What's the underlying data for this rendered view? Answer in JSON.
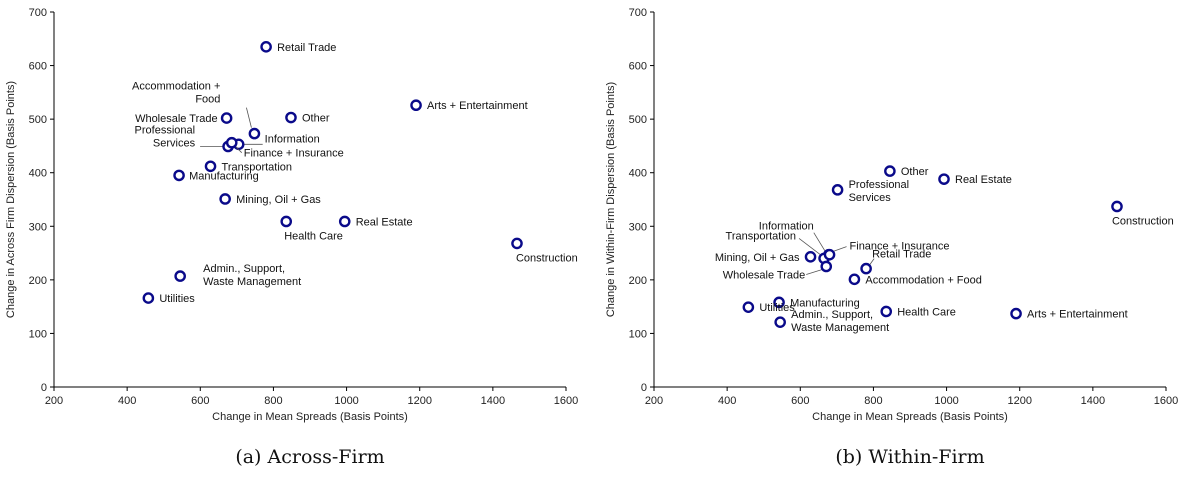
{
  "chart_data": [
    {
      "type": "scatter",
      "caption": "(a) Across-Firm",
      "xlabel": "Change in Mean Spreads (Basis Points)",
      "ylabel": "Change in Across Firm Dispersion (Basis Points)",
      "xlim": [
        200,
        1600
      ],
      "ylim": [
        0,
        700
      ],
      "xticks": [
        200,
        400,
        600,
        800,
        1000,
        1200,
        1400,
        1600
      ],
      "yticks": [
        0,
        100,
        200,
        300,
        400,
        500,
        600,
        700
      ],
      "grid": false,
      "points": [
        {
          "label": "Retail Trade",
          "x": 780,
          "y": 635
        },
        {
          "label": "Arts + Entertainment",
          "x": 1190,
          "y": 526
        },
        {
          "label": "Accommodation +\nFood",
          "x": 748,
          "y": 473
        },
        {
          "label": "Wholesale Trade",
          "x": 672,
          "y": 502
        },
        {
          "label": "Other",
          "x": 848,
          "y": 503
        },
        {
          "label": "Professional\nServices",
          "x": 676,
          "y": 449
        },
        {
          "label": "Information",
          "x": 705,
          "y": 453
        },
        {
          "label": "Finance + Insurance",
          "x": 686,
          "y": 456
        },
        {
          "label": "Transportation",
          "x": 628,
          "y": 412
        },
        {
          "label": "Manufacturing",
          "x": 542,
          "y": 395
        },
        {
          "label": "Mining, Oil + Gas",
          "x": 668,
          "y": 351
        },
        {
          "label": "Health Care",
          "x": 835,
          "y": 309
        },
        {
          "label": "Real Estate",
          "x": 995,
          "y": 309
        },
        {
          "label": "Construction",
          "x": 1466,
          "y": 268
        },
        {
          "label": "Admin., Support,\nWaste Management",
          "x": 545,
          "y": 207
        },
        {
          "label": "Utilities",
          "x": 458,
          "y": 166
        }
      ]
    },
    {
      "type": "scatter",
      "caption": "(b) Within-Firm",
      "xlabel": "Change in Mean Spreads (Basis Points)",
      "ylabel": "Change in Within-Firm Dispersion (Basis Points)",
      "xlim": [
        200,
        1600
      ],
      "ylim": [
        0,
        700
      ],
      "xticks": [
        200,
        400,
        600,
        800,
        1000,
        1200,
        1400,
        1600
      ],
      "yticks": [
        0,
        100,
        200,
        300,
        400,
        500,
        600,
        700
      ],
      "grid": false,
      "points": [
        {
          "label": "Other",
          "x": 845,
          "y": 403
        },
        {
          "label": "Real Estate",
          "x": 993,
          "y": 388
        },
        {
          "label": "Professional\nServices",
          "x": 702,
          "y": 368
        },
        {
          "label": "Construction",
          "x": 1466,
          "y": 337
        },
        {
          "label": "Information",
          "x": 678,
          "y": 247
        },
        {
          "label": "Transportation",
          "x": 665,
          "y": 240
        },
        {
          "label": "Finance + Insurance",
          "x": 680,
          "y": 247
        },
        {
          "label": "Mining, Oil + Gas",
          "x": 628,
          "y": 243
        },
        {
          "label": "Wholesale Trade",
          "x": 671,
          "y": 225
        },
        {
          "label": "Retail Trade",
          "x": 780,
          "y": 221
        },
        {
          "label": "Accommodation + Food",
          "x": 748,
          "y": 201
        },
        {
          "label": "Manufacturing",
          "x": 542,
          "y": 158
        },
        {
          "label": "Utilities",
          "x": 458,
          "y": 149
        },
        {
          "label": "Health Care",
          "x": 835,
          "y": 141
        },
        {
          "label": "Arts + Entertainment",
          "x": 1190,
          "y": 137
        },
        {
          "label": "Admin., Support,\nWaste Management",
          "x": 545,
          "y": 121
        }
      ]
    }
  ]
}
